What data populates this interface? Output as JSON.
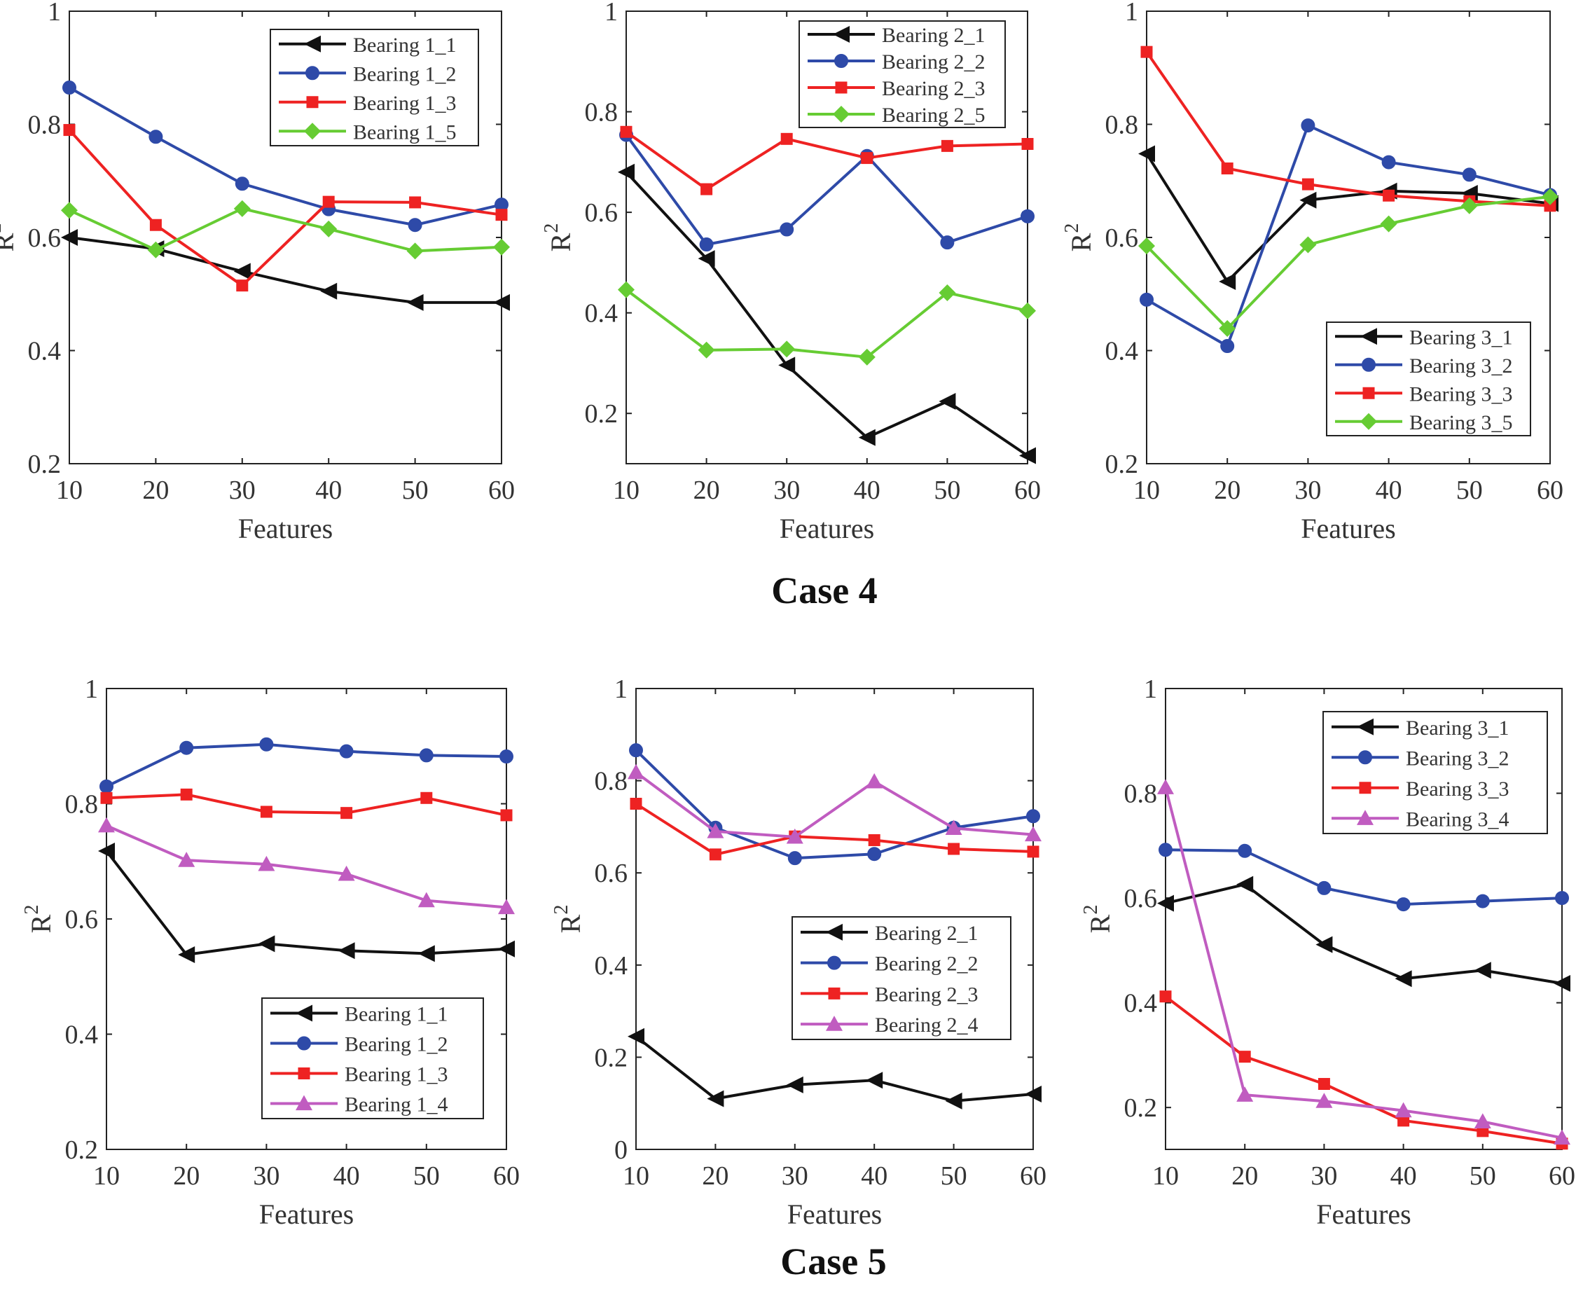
{
  "figure": {
    "case_titles": [
      "Case 4",
      "Case 5"
    ]
  },
  "style": {
    "series_colors": {
      "black": "#111111",
      "blue": "#2e4aa8",
      "red": "#ee2222",
      "green": "#66cc33",
      "magenta": "#c05cc0"
    },
    "axis_color": "#222222"
  },
  "chart_data": [
    {
      "type": "line",
      "case": "Case 4",
      "x": [
        10,
        20,
        30,
        40,
        50,
        60
      ],
      "xlabel": "Features",
      "ylabel": "R",
      "xlim": [
        10,
        60
      ],
      "ylim": [
        0.2,
        1
      ],
      "yticks": [
        0.2,
        0.4,
        0.6,
        0.8,
        1
      ],
      "ytick_labels": [
        "0.2",
        "0.4",
        "0.6",
        "0.8",
        "1"
      ],
      "legend_position": "top-right",
      "series": [
        {
          "name": "Bearing 1_1",
          "color": "black",
          "marker": "triangle-left",
          "values": [
            0.6,
            0.58,
            0.54,
            0.505,
            0.485,
            0.485
          ]
        },
        {
          "name": "Bearing 1_2",
          "color": "blue",
          "marker": "circle",
          "values": [
            0.865,
            0.778,
            0.695,
            0.65,
            0.622,
            0.658
          ]
        },
        {
          "name": "Bearing 1_3",
          "color": "red",
          "marker": "square",
          "values": [
            0.79,
            0.622,
            0.515,
            0.663,
            0.662,
            0.64
          ]
        },
        {
          "name": "Bearing 1_5",
          "color": "green",
          "marker": "diamond",
          "values": [
            0.648,
            0.578,
            0.651,
            0.615,
            0.576,
            0.583
          ]
        }
      ]
    },
    {
      "type": "line",
      "case": "Case 4",
      "x": [
        10,
        20,
        30,
        40,
        50,
        60
      ],
      "xlabel": "Features",
      "ylabel": "R",
      "xlim": [
        10,
        60
      ],
      "ylim": [
        0.1,
        1
      ],
      "yticks": [
        0.2,
        0.4,
        0.6,
        0.8,
        1
      ],
      "ytick_labels": [
        "0.2",
        "0.4",
        "0.6",
        "0.8",
        "1"
      ],
      "legend_position": "top-right",
      "series": [
        {
          "name": "Bearing 2_1",
          "color": "black",
          "marker": "triangle-left",
          "values": [
            0.68,
            0.508,
            0.296,
            0.152,
            0.224,
            0.116
          ]
        },
        {
          "name": "Bearing 2_2",
          "color": "blue",
          "marker": "circle",
          "values": [
            0.754,
            0.536,
            0.566,
            0.712,
            0.54,
            0.592
          ]
        },
        {
          "name": "Bearing 2_3",
          "color": "red",
          "marker": "square",
          "values": [
            0.76,
            0.646,
            0.746,
            0.708,
            0.732,
            0.736
          ]
        },
        {
          "name": "Bearing 2_5",
          "color": "green",
          "marker": "diamond",
          "values": [
            0.446,
            0.326,
            0.328,
            0.312,
            0.44,
            0.404
          ]
        }
      ]
    },
    {
      "type": "line",
      "case": "Case 4",
      "x": [
        10,
        20,
        30,
        40,
        50,
        60
      ],
      "xlabel": "Features",
      "ylabel": "R",
      "xlim": [
        10,
        60
      ],
      "ylim": [
        0.2,
        1
      ],
      "yticks": [
        0.2,
        0.4,
        0.6,
        0.8,
        1
      ],
      "ytick_labels": [
        "0.2",
        "0.4",
        "0.6",
        "0.8",
        "1"
      ],
      "legend_position": "bottom-right",
      "series": [
        {
          "name": "Bearing 3_1",
          "color": "black",
          "marker": "triangle-left",
          "values": [
            0.748,
            0.522,
            0.666,
            0.682,
            0.678,
            0.66
          ]
        },
        {
          "name": "Bearing 3_2",
          "color": "blue",
          "marker": "circle",
          "values": [
            0.49,
            0.408,
            0.798,
            0.733,
            0.711,
            0.675
          ]
        },
        {
          "name": "Bearing 3_3",
          "color": "red",
          "marker": "square",
          "values": [
            0.928,
            0.722,
            0.694,
            0.674,
            0.664,
            0.656
          ]
        },
        {
          "name": "Bearing 3_5",
          "color": "green",
          "marker": "diamond",
          "values": [
            0.585,
            0.439,
            0.587,
            0.624,
            0.656,
            0.672
          ]
        }
      ]
    },
    {
      "type": "line",
      "case": "Case 5",
      "x": [
        10,
        20,
        30,
        40,
        50,
        60
      ],
      "xlabel": "Features",
      "ylabel": "R",
      "xlim": [
        10,
        60
      ],
      "ylim": [
        0.2,
        1
      ],
      "yticks": [
        0.2,
        0.4,
        0.6,
        0.8,
        1
      ],
      "ytick_labels": [
        "0.2",
        "0.4",
        "0.6",
        "0.8",
        "1"
      ],
      "legend_position": "bottom-right",
      "series": [
        {
          "name": "Bearing 1_1",
          "color": "black",
          "marker": "triangle-left",
          "values": [
            0.718,
            0.538,
            0.557,
            0.545,
            0.54,
            0.548
          ]
        },
        {
          "name": "Bearing 1_2",
          "color": "blue",
          "marker": "circle",
          "values": [
            0.83,
            0.897,
            0.903,
            0.891,
            0.884,
            0.882
          ]
        },
        {
          "name": "Bearing 1_3",
          "color": "red",
          "marker": "square",
          "values": [
            0.81,
            0.816,
            0.786,
            0.784,
            0.81,
            0.78
          ]
        },
        {
          "name": "Bearing 1_4",
          "color": "magenta",
          "marker": "triangle-up",
          "values": [
            0.762,
            0.702,
            0.695,
            0.678,
            0.632,
            0.62
          ]
        }
      ]
    },
    {
      "type": "line",
      "case": "Case 5",
      "x": [
        10,
        20,
        30,
        40,
        50,
        60
      ],
      "xlabel": "Features",
      "ylabel": "R",
      "xlim": [
        10,
        60
      ],
      "ylim": [
        0,
        1
      ],
      "yticks": [
        0,
        0.2,
        0.4,
        0.6,
        0.8,
        1
      ],
      "ytick_labels": [
        "0",
        "0.2",
        "0.4",
        "0.6",
        "0.8",
        "1"
      ],
      "legend_position": "bottom-right",
      "series": [
        {
          "name": "Bearing 2_1",
          "color": "black",
          "marker": "triangle-left",
          "values": [
            0.245,
            0.11,
            0.14,
            0.15,
            0.105,
            0.12
          ]
        },
        {
          "name": "Bearing 2_2",
          "color": "blue",
          "marker": "circle",
          "values": [
            0.866,
            0.698,
            0.632,
            0.641,
            0.698,
            0.723
          ]
        },
        {
          "name": "Bearing 2_3",
          "color": "red",
          "marker": "square",
          "values": [
            0.75,
            0.64,
            0.679,
            0.671,
            0.652,
            0.646
          ]
        },
        {
          "name": "Bearing 2_4",
          "color": "magenta",
          "marker": "triangle-up",
          "values": [
            0.818,
            0.69,
            0.678,
            0.798,
            0.697,
            0.683
          ]
        }
      ]
    },
    {
      "type": "line",
      "case": "Case 5",
      "x": [
        10,
        20,
        30,
        40,
        50,
        60
      ],
      "xlabel": "Features",
      "ylabel": "R",
      "xlim": [
        10,
        60
      ],
      "ylim": [
        0.12,
        1
      ],
      "yticks": [
        0.2,
        0.4,
        0.6,
        0.8,
        1
      ],
      "ytick_labels": [
        "0.2",
        "0.4",
        "0.6",
        "0.8",
        "1"
      ],
      "legend_position": "top-right",
      "series": [
        {
          "name": "Bearing 3_1",
          "color": "black",
          "marker": "triangle-left",
          "values": [
            0.59,
            0.626,
            0.511,
            0.446,
            0.462,
            0.437
          ]
        },
        {
          "name": "Bearing 3_2",
          "color": "blue",
          "marker": "circle",
          "values": [
            0.692,
            0.69,
            0.619,
            0.588,
            0.594,
            0.6
          ]
        },
        {
          "name": "Bearing 3_3",
          "color": "red",
          "marker": "square",
          "values": [
            0.412,
            0.297,
            0.245,
            0.175,
            0.155,
            0.131
          ]
        },
        {
          "name": "Bearing 3_4",
          "color": "magenta",
          "marker": "triangle-up",
          "values": [
            0.811,
            0.224,
            0.212,
            0.194,
            0.173,
            0.142
          ]
        }
      ]
    }
  ]
}
